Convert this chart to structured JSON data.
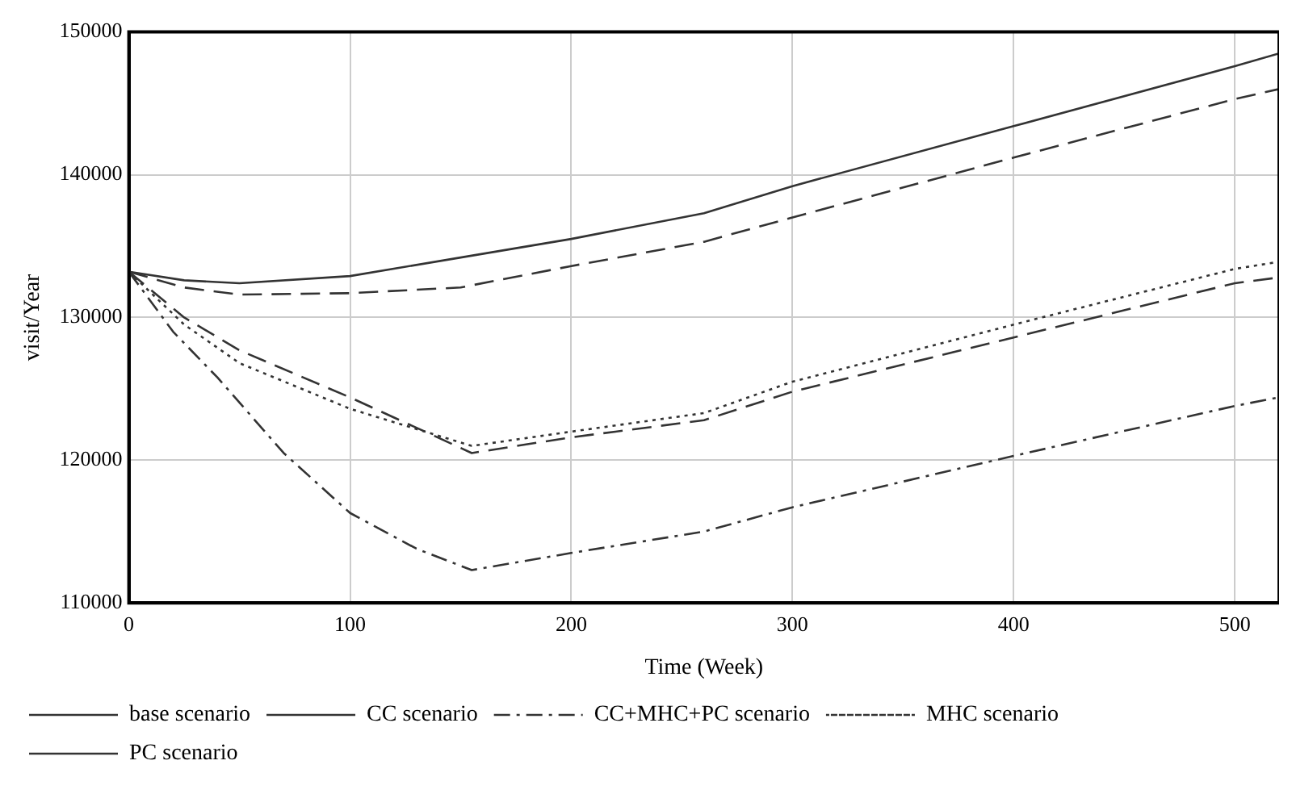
{
  "chart_data": {
    "type": "line",
    "xlabel": "Time (Week)",
    "ylabel": "visit/Year",
    "xlim": [
      0,
      520
    ],
    "xticks": [
      0,
      100,
      200,
      300,
      400,
      500
    ],
    "ylim": [
      110000,
      150000
    ],
    "yticks": [
      110000,
      120000,
      130000,
      140000,
      150000
    ],
    "grid": true,
    "legend": "bottom",
    "marker": "none",
    "series": [
      {
        "name": "base scenario",
        "color": "#333333",
        "line_style": "solid",
        "x": [
          0,
          25,
          50,
          100,
          150,
          200,
          260,
          300,
          400,
          500,
          520
        ],
        "values": [
          133200,
          132600,
          132400,
          132900,
          134200,
          135500,
          137300,
          139200,
          143400,
          147600,
          148500
        ]
      },
      {
        "name": "CC scenario",
        "color": "#333333",
        "line_style": "dashed",
        "x": [
          0,
          25,
          50,
          100,
          150,
          200,
          260,
          300,
          400,
          500,
          520
        ],
        "values": [
          133200,
          132100,
          131600,
          131700,
          132100,
          133600,
          135300,
          137000,
          141200,
          145300,
          146000
        ]
      },
      {
        "name": "CC+MHC+PC scenario",
        "color": "#333333",
        "line_style": "dashdot",
        "x": [
          0,
          20,
          40,
          70,
          100,
          130,
          155,
          200,
          260,
          300,
          400,
          500,
          520
        ],
        "values": [
          133200,
          129000,
          125800,
          120500,
          116300,
          113800,
          112300,
          113500,
          115000,
          116700,
          120300,
          123800,
          124400
        ]
      },
      {
        "name": "MHC scenario",
        "color": "#333333",
        "line_style": "dotted",
        "x": [
          0,
          25,
          50,
          100,
          155,
          200,
          260,
          300,
          400,
          500,
          520
        ],
        "values": [
          133200,
          129500,
          126800,
          123600,
          121000,
          122000,
          123300,
          125500,
          129500,
          133400,
          133900
        ]
      },
      {
        "name": "PC scenario",
        "color": "#333333",
        "line_style": "dashed",
        "x": [
          0,
          25,
          50,
          100,
          155,
          200,
          260,
          300,
          400,
          500,
          520
        ],
        "values": [
          133200,
          130000,
          127700,
          124400,
          120500,
          121600,
          122800,
          124800,
          128600,
          132400,
          132800
        ]
      }
    ]
  }
}
